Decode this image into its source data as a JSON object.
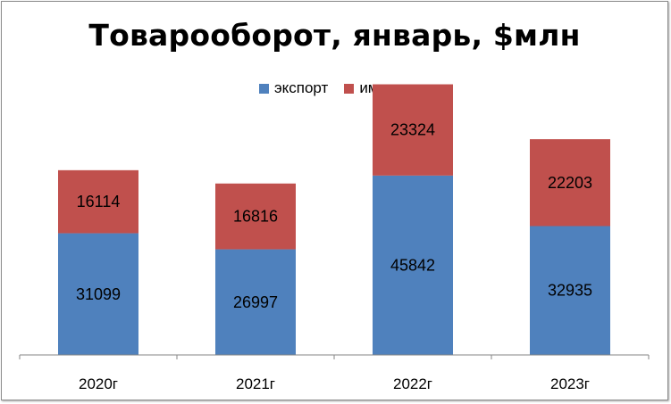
{
  "chart_data": {
    "type": "bar",
    "stacked": true,
    "title": "Товарооборот, январь, $млн",
    "categories": [
      "2020г",
      "2021г",
      "2022г",
      "2023г"
    ],
    "series": [
      {
        "name": "экспорт",
        "values": [
          31099,
          26997,
          45842,
          32935
        ],
        "color": "#4f81bd"
      },
      {
        "name": "импорт",
        "values": [
          16114,
          16816,
          23324,
          22203
        ],
        "color": "#c0504d"
      }
    ],
    "ylim": [
      0,
      80000
    ],
    "legend_position": "top",
    "grid": false
  }
}
